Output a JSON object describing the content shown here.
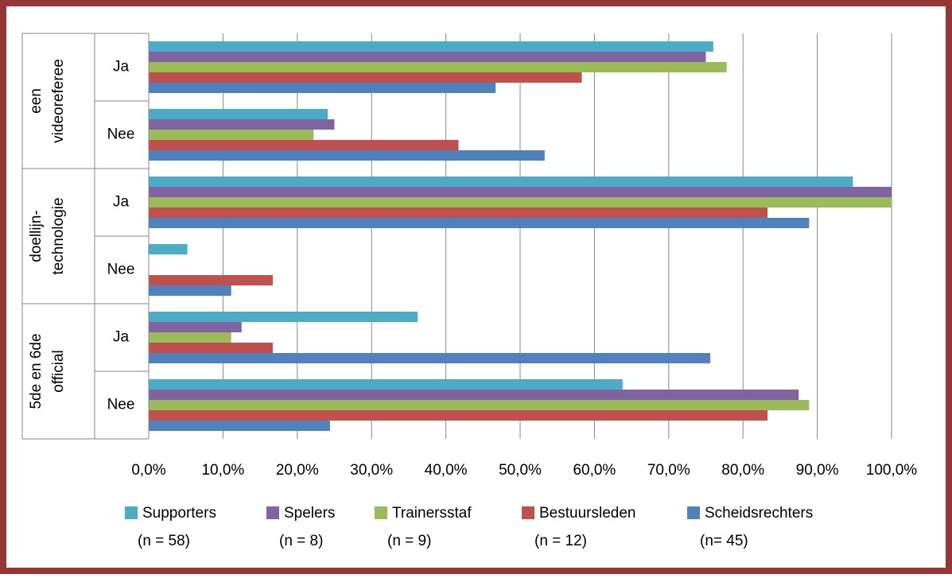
{
  "chart_data": {
    "type": "bar",
    "orientation": "horizontal",
    "categories": [
      "Ja",
      "Nee",
      "Ja",
      "Nee",
      "Ja",
      "Nee"
    ],
    "groups": [
      {
        "lines": [
          "een",
          "videoreferee"
        ],
        "span": 2
      },
      {
        "lines": [
          "doellijn-",
          "technologie"
        ],
        "span": 2
      },
      {
        "lines": [
          "5de en 6de",
          "official"
        ],
        "span": 2
      }
    ],
    "series": [
      {
        "name": "Supporters",
        "sample": "(n = 58)",
        "color": "#4bacc6",
        "values": [
          76.0,
          24.1,
          94.8,
          5.2,
          36.2,
          63.8
        ]
      },
      {
        "name": "Spelers",
        "sample": "(n = 8)",
        "color": "#8064a2",
        "values": [
          75.0,
          25.0,
          100,
          0,
          12.5,
          87.5
        ]
      },
      {
        "name": "Trainersstaf",
        "sample": "(n = 9)",
        "color": "#9bbb59",
        "values": [
          77.8,
          22.2,
          100,
          0,
          11.1,
          88.9
        ]
      },
      {
        "name": "Bestuursleden",
        "sample": "(n = 12)",
        "color": "#c0504d",
        "values": [
          58.3,
          41.7,
          83.3,
          16.7,
          16.7,
          83.3
        ]
      },
      {
        "name": "Scheidsrechters",
        "sample": "(n= 45)",
        "color": "#4f81bd",
        "values": [
          46.7,
          53.3,
          88.9,
          11.1,
          75.6,
          24.4
        ]
      }
    ],
    "xlim": [
      0,
      100
    ],
    "xticks": [
      {
        "value": 0,
        "label": "0,0%"
      },
      {
        "value": 10,
        "label": "10,0%"
      },
      {
        "value": 20,
        "label": "20,0%"
      },
      {
        "value": 30,
        "label": "30,0%"
      },
      {
        "value": 40,
        "label": "40,0%"
      },
      {
        "value": 50,
        "label": "50,0%"
      },
      {
        "value": 60,
        "label": "60,0%"
      },
      {
        "value": 70,
        "label": "70,0%"
      },
      {
        "value": 80,
        "label": "80,0%"
      },
      {
        "value": 90,
        "label": "90,0%"
      },
      {
        "value": 100,
        "label": "100,0%"
      }
    ],
    "grid": true,
    "legend": "bottom"
  }
}
